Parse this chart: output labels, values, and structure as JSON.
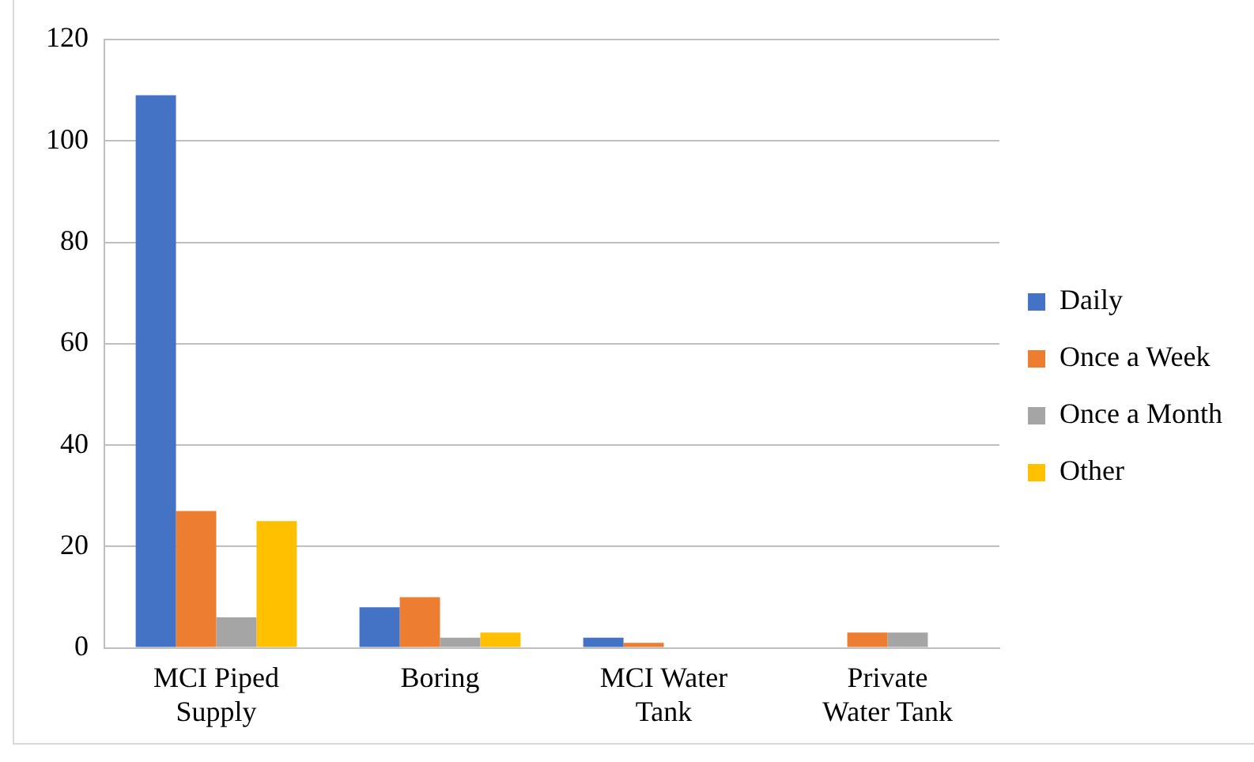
{
  "chart_data": {
    "type": "bar",
    "categories": [
      "MCI Piped Supply",
      "Boring",
      "MCI Water Tank",
      "Private Water Tank"
    ],
    "series": [
      {
        "name": "Daily",
        "color": "#4472c4",
        "values": [
          109,
          8,
          2,
          0
        ]
      },
      {
        "name": "Once a Week",
        "color": "#ed7d31",
        "values": [
          27,
          10,
          1,
          3
        ]
      },
      {
        "name": "Once a Month",
        "color": "#a5a5a5",
        "values": [
          6,
          2,
          0,
          3
        ]
      },
      {
        "name": "Other",
        "color": "#ffc000",
        "values": [
          25,
          3,
          0,
          0
        ]
      }
    ],
    "ylim": [
      0,
      120
    ],
    "yticks": [
      0,
      20,
      40,
      60,
      80,
      100,
      120
    ],
    "grid": "y",
    "legend": "right"
  }
}
